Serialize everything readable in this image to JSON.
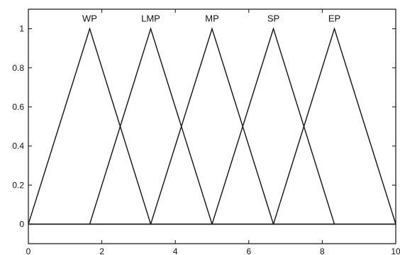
{
  "chart_data": {
    "type": "line",
    "title": "",
    "xlabel": "",
    "ylabel": "",
    "xlim": [
      0,
      10
    ],
    "ylim": [
      -0.1,
      1.1
    ],
    "xticks": [
      0,
      2,
      4,
      6,
      8,
      10
    ],
    "xtick_labels": [
      "0",
      "2",
      "4",
      "6",
      "8",
      "10"
    ],
    "yticks": [
      0,
      0.2,
      0.4,
      0.6,
      0.8,
      1
    ],
    "ytick_labels": [
      "0",
      "0.2",
      "0.4",
      "0.6",
      "0.8",
      "1"
    ],
    "grid": false,
    "legend": "none",
    "line_color": "#111111",
    "series": [
      {
        "name": "WP",
        "x": [
          0,
          1.67,
          3.33
        ],
        "y": [
          0,
          1,
          0
        ]
      },
      {
        "name": "LMP",
        "x": [
          1.67,
          3.33,
          5.0
        ],
        "y": [
          0,
          1,
          0
        ]
      },
      {
        "name": "MP",
        "x": [
          3.33,
          5.0,
          6.67
        ],
        "y": [
          0,
          1,
          0
        ]
      },
      {
        "name": "SP",
        "x": [
          5.0,
          6.67,
          8.33
        ],
        "y": [
          0,
          1,
          0
        ]
      },
      {
        "name": "EP",
        "x": [
          6.67,
          8.33,
          10.0
        ],
        "y": [
          0,
          1,
          0
        ]
      }
    ],
    "baseline": {
      "x": [
        0,
        10
      ],
      "y": [
        0,
        0
      ]
    }
  }
}
